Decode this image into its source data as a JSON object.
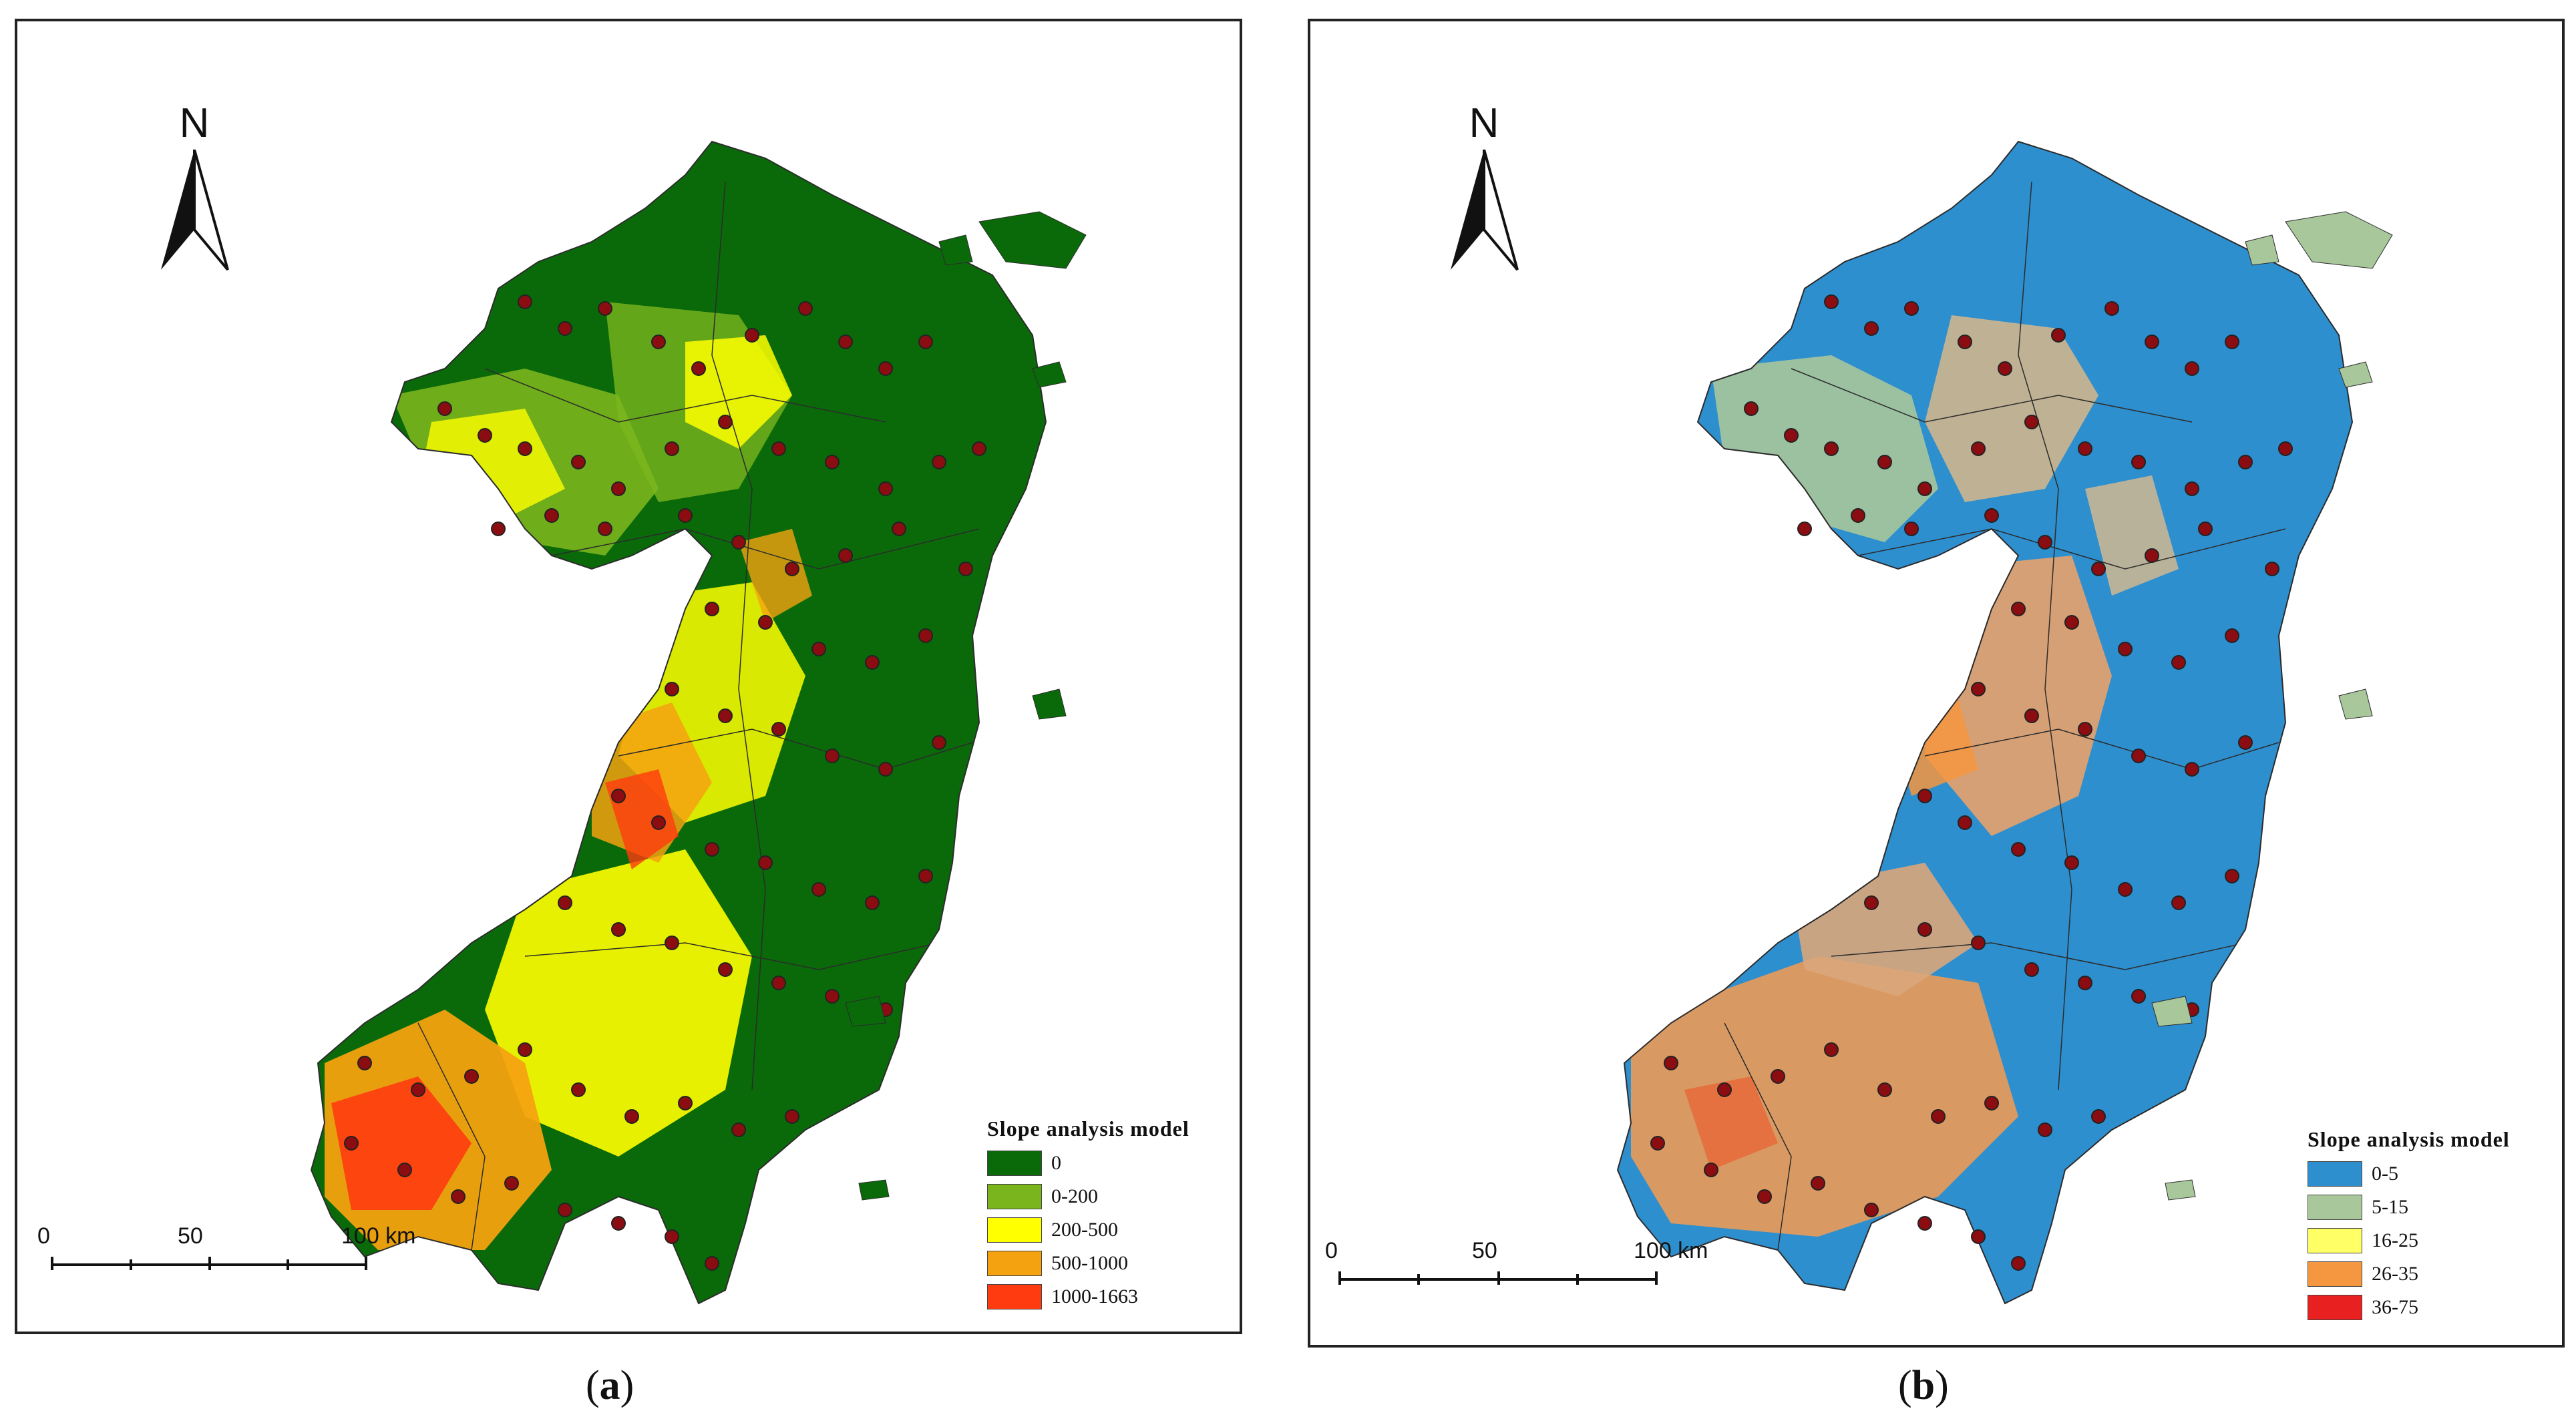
{
  "panels": {
    "a": {
      "caption_open": "(",
      "caption_letter": "a",
      "caption_close": ")",
      "north": "N",
      "legend": {
        "title": "Slope analysis model",
        "items": [
          {
            "label": "0",
            "color": "#0a6a0a"
          },
          {
            "label": "0-200",
            "color": "#7ab51d"
          },
          {
            "label": "200-500",
            "color": "#ffff00"
          },
          {
            "label": "500-1000",
            "color": "#f4a20f"
          },
          {
            "label": "1000-1663",
            "color": "#ff3b0f"
          }
        ]
      },
      "scale": {
        "labels": [
          "0",
          "50",
          "100 km"
        ]
      }
    },
    "b": {
      "caption_open": "(",
      "caption_letter": "b",
      "caption_close": ")",
      "north": "N",
      "legend": {
        "title": "Slope analysis model",
        "items": [
          {
            "label": "0-5",
            "color": "#2e8fcf"
          },
          {
            "label": "5-15",
            "color": "#a8c79b"
          },
          {
            "label": "16-25",
            "color": "#ffff66"
          },
          {
            "label": "26-35",
            "color": "#f59640"
          },
          {
            "label": "36-75",
            "color": "#e82020"
          }
        ]
      },
      "scale": {
        "labels": [
          "0",
          "50",
          "100 km"
        ]
      }
    }
  },
  "colors": {
    "site_marker": "#8b0d12",
    "boundary_line": "#2b2b2b"
  }
}
